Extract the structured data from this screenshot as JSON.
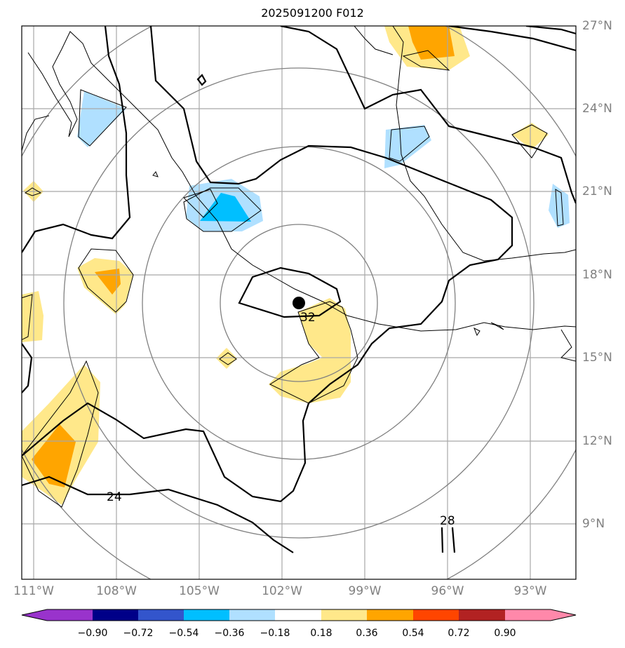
{
  "title": "2025091200 F012",
  "map": {
    "lat_labels": [
      "27°N",
      "24°N",
      "21°N",
      "18°N",
      "15°N",
      "12°N",
      "9°N"
    ],
    "lon_labels": [
      "111°W",
      "108°W",
      "105°W",
      "102°W",
      "99°W",
      "96°W",
      "93°W"
    ],
    "contour_labels": [
      "32",
      "24",
      "28"
    ],
    "storm_center": {
      "lon": -101.3,
      "lat": 17.0
    }
  },
  "colorbar": {
    "ticks": [
      "−0.90",
      "−0.72",
      "−0.54",
      "−0.36",
      "−0.18",
      "0.18",
      "0.36",
      "0.54",
      "0.72",
      "0.90"
    ],
    "colors": [
      "#9933cc",
      "#000088",
      "#3355cc",
      "#00bfff",
      "#b0e0ff",
      "#ffffff",
      "#ffe88a",
      "#ffa500",
      "#ff4500",
      "#b22222",
      "#ff88aa"
    ]
  }
}
